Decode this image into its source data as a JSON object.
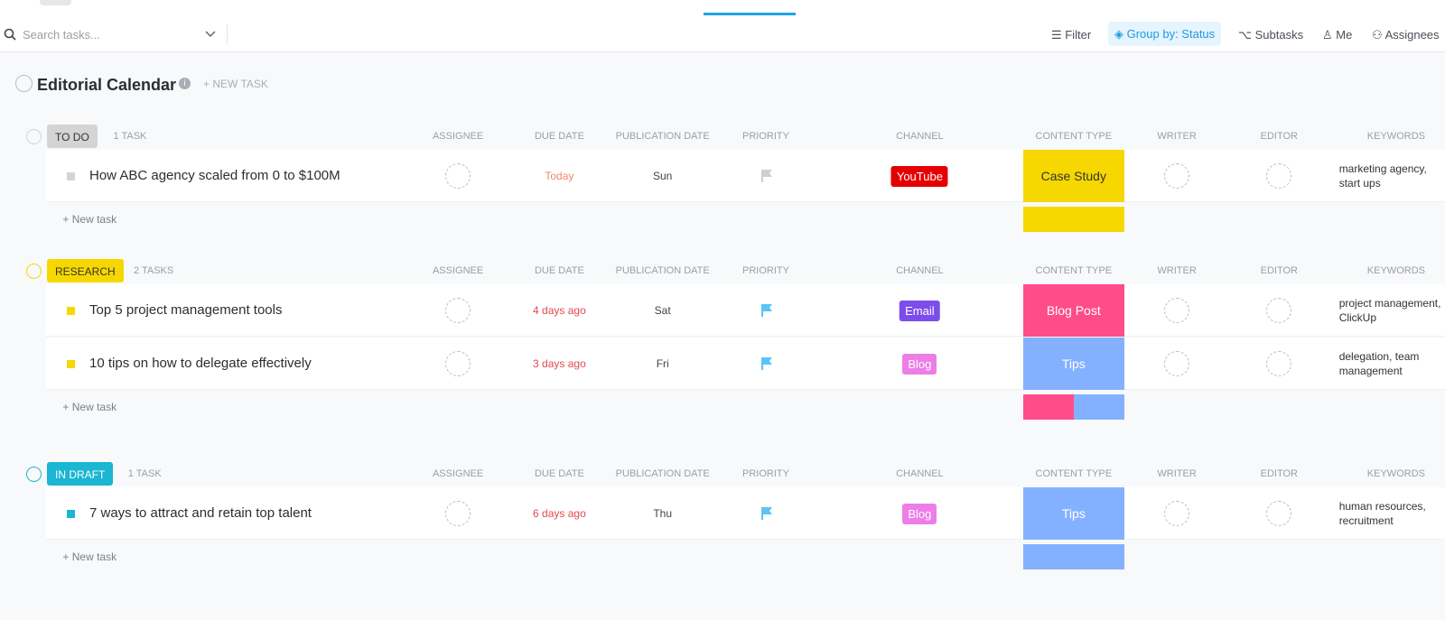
{
  "toolbar": {
    "search_placeholder": "Search tasks...",
    "filter": "Filter",
    "group_by": "Group by: Status",
    "subtasks": "Subtasks",
    "me": "Me",
    "assignees": "Assignees"
  },
  "list": {
    "title": "Editorial Calendar",
    "new_task": "+ NEW TASK"
  },
  "columns": [
    "ASSIGNEE",
    "DUE DATE",
    "PUBLICATION DATE",
    "PRIORITY",
    "CHANNEL",
    "CONTENT TYPE",
    "WRITER",
    "EDITOR",
    "KEYWORDS"
  ],
  "groups": [
    {
      "status": "TO DO",
      "count": "1 TASK",
      "color": "#d4d4d4",
      "text_color": "#333333",
      "add_task": "+ New task",
      "tasks": [
        {
          "name": "How ABC agency scaled from 0 to $100M",
          "due_date": "Today",
          "due_color": "#ee8a6a",
          "publication_date": "Sun",
          "priority_color": "#cfcfcf",
          "channel": "YouTube",
          "channel_color": "#e50000",
          "content_type": "Case Study",
          "content_color": "#f6d800",
          "content_text_color": "#333333",
          "keywords": "marketing agency, start ups"
        }
      ]
    },
    {
      "status": "RESEARCH",
      "count": "2 TASKS",
      "color": "#f6d800",
      "text_color": "#333333",
      "add_task": "+ New task",
      "tasks": [
        {
          "name": "Top 5 project management tools",
          "due_date": "4 days ago",
          "due_color": "#e5484d",
          "publication_date": "Sat",
          "priority_color": "#5bc4f5",
          "channel": "Email",
          "channel_color": "#7c4dea",
          "content_type": "Blog Post",
          "content_color": "#ff4d8a",
          "content_text_color": "#ffffff",
          "keywords": "project management, ClickUp"
        },
        {
          "name": "10 tips on how to delegate effectively",
          "due_date": "3 days ago",
          "due_color": "#e5484d",
          "publication_date": "Fri",
          "priority_color": "#5bc4f5",
          "channel": "Blog",
          "channel_color": "#ec7ee8",
          "content_type": "Tips",
          "content_color": "#84b1ff",
          "content_text_color": "#ffffff",
          "keywords": "delegation, team management"
        }
      ]
    },
    {
      "status": "IN DRAFT",
      "count": "1 TASK",
      "color": "#1ab6d2",
      "text_color": "#ffffff",
      "add_task": "+ New task",
      "tasks": [
        {
          "name": "7 ways to attract and retain top talent",
          "due_date": "6 days ago",
          "due_color": "#e5484d",
          "publication_date": "Thu",
          "priority_color": "#5bc4f5",
          "channel": "Blog",
          "channel_color": "#ec7ee8",
          "content_type": "Tips",
          "content_color": "#84b1ff",
          "content_text_color": "#ffffff",
          "keywords": "human resources, recruitment"
        }
      ]
    }
  ]
}
